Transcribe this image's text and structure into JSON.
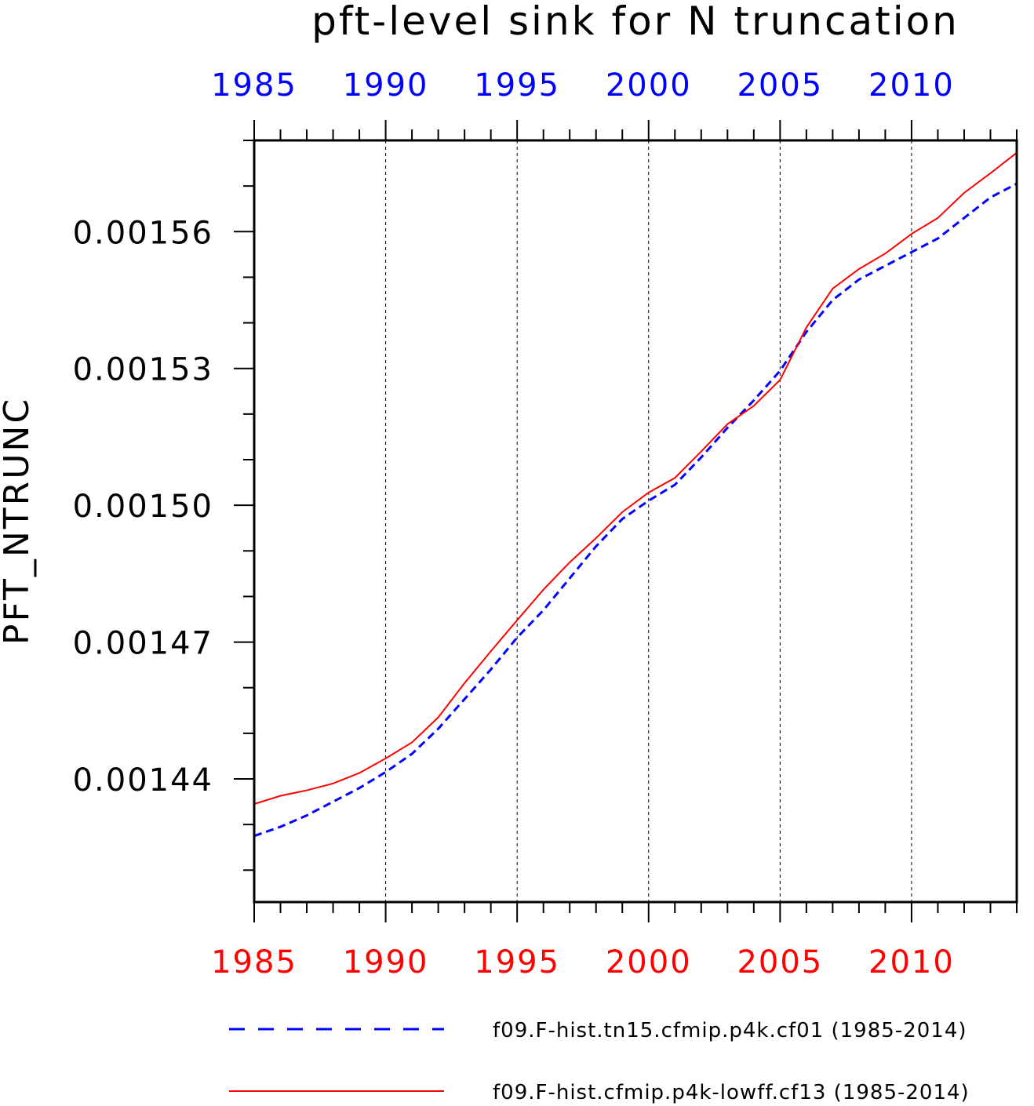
{
  "chart_data": {
    "type": "line",
    "title": "pft-level sink for N truncation",
    "ylabel": "PFT_NTRUNC",
    "xlabel": "",
    "xlim": [
      1985,
      2014
    ],
    "ylim": [
      0.001413,
      0.00158
    ],
    "xticks_major": [
      1985,
      1990,
      1995,
      2000,
      2005,
      2010
    ],
    "xtick_labels": [
      "1985",
      "1990",
      "1995",
      "2000",
      "2005",
      "2010"
    ],
    "yticks_major": [
      0.00144,
      0.00147,
      0.0015,
      0.00153,
      0.00156
    ],
    "ytick_labels": [
      "0.00144",
      "0.00147",
      "0.00150",
      "0.00153",
      "0.00156"
    ],
    "grid": "vertical dashed at major x ticks",
    "legend_position": "bottom",
    "x": [
      1985,
      1986,
      1987,
      1988,
      1989,
      1990,
      1991,
      1992,
      1993,
      1994,
      1995,
      1996,
      1997,
      1998,
      1999,
      2000,
      2001,
      2002,
      2003,
      2004,
      2005,
      2006,
      2007,
      2008,
      2009,
      2010,
      2011,
      2012,
      2013,
      2014
    ],
    "series": [
      {
        "name": "f09.F-hist.tn15.cfmip.p4k.cf01 (1985-2014)",
        "color": "#0000ff",
        "dash": "dashed",
        "values": [
          0.0014275,
          0.0014295,
          0.001432,
          0.001435,
          0.001438,
          0.0014415,
          0.0014455,
          0.001451,
          0.0014575,
          0.001464,
          0.001471,
          0.001477,
          0.001484,
          0.001491,
          0.001497,
          0.001501,
          0.0015045,
          0.0015105,
          0.001517,
          0.001523,
          0.0015295,
          0.001538,
          0.001545,
          0.0015495,
          0.0015525,
          0.0015555,
          0.0015585,
          0.001563,
          0.0015675,
          0.0015705
        ]
      },
      {
        "name": "f09.F-hist.cfmip.p4k-lowff.cf13 (1985-2014)",
        "color": "#ff0000",
        "dash": "solid",
        "values": [
          0.0014345,
          0.0014363,
          0.0014375,
          0.001439,
          0.0014413,
          0.0014445,
          0.001448,
          0.0014535,
          0.001461,
          0.001468,
          0.0014748,
          0.0014815,
          0.0014875,
          0.0014928,
          0.0014985,
          0.0015028,
          0.001506,
          0.0015118,
          0.0015178,
          0.0015218,
          0.0015275,
          0.001539,
          0.0015475,
          0.0015518,
          0.0015552,
          0.0015595,
          0.001563,
          0.0015685,
          0.0015728,
          0.0015773
        ]
      }
    ]
  }
}
